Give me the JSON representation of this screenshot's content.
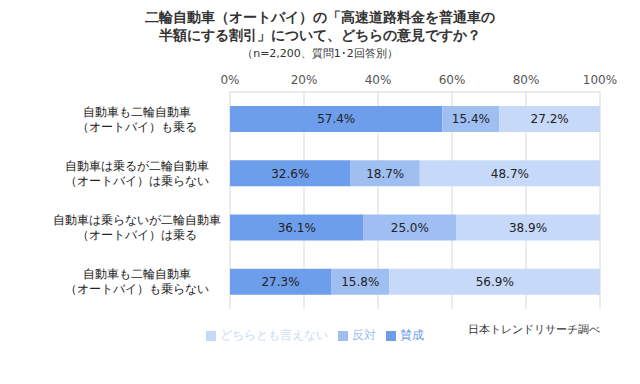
{
  "chart_data": {
    "type": "bar",
    "orientation": "horizontal",
    "stacked": true,
    "title": "二輪自動車（オートバイ）の「高速道路料金を普通車の\n半額にする割引」について、どちらの意見ですか？",
    "subtitle": "（n=2,200、質問1･2回答別）",
    "annotation": "日本トレンドリサーチ調べ",
    "categories": [
      "自動車も二輪自動車\n（オートバイ）も乗る",
      "自動車は乗るが二輪自動車\n（オートバイ）は乗らない",
      "自動車は乗らないが二輪自動車\n（オートバイ）は乗る",
      "自動車も二輪自動車\n（オートバイ）も乗らない"
    ],
    "series": [
      {
        "name": "賛成",
        "color": "#6d9eeb",
        "values": [
          57.4,
          32.6,
          36.1,
          27.3
        ],
        "value_labels": [
          "57.4%",
          "32.6%",
          "36.1%",
          "27.3%"
        ]
      },
      {
        "name": "反対",
        "color": "#9fbff2",
        "values": [
          15.4,
          18.7,
          25.0,
          15.8
        ],
        "value_labels": [
          "15.4%",
          "18.7%",
          "25.0%",
          "15.8%"
        ]
      },
      {
        "name": "どちらとも言えない",
        "color": "#c6d9f8",
        "values": [
          27.2,
          48.7,
          38.9,
          56.9
        ],
        "value_labels": [
          "27.2%",
          "48.7%",
          "38.9%",
          "56.9%"
        ]
      }
    ],
    "xlim": [
      0,
      100
    ],
    "xticks": [
      {
        "value": 0,
        "label": "0%"
      },
      {
        "value": 20,
        "label": "20%"
      },
      {
        "value": 40,
        "label": "40%"
      },
      {
        "value": 60,
        "label": "60%"
      },
      {
        "value": 80,
        "label": "80%"
      },
      {
        "value": 100,
        "label": "100%"
      }
    ],
    "grid": true,
    "legend": "bottom",
    "data_labels": true
  }
}
